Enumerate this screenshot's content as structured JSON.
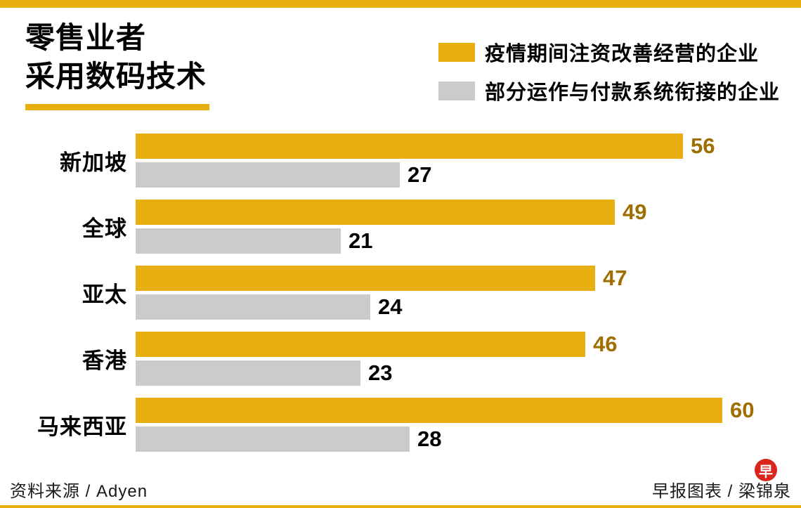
{
  "page": {
    "title_line1": "零售业者",
    "title_line2": "采用数码技术"
  },
  "legend": [
    {
      "label": "疫情期间注资改善经营的企业",
      "color": "#e8af11"
    },
    {
      "label": "部分运作与付款系统衔接的企业",
      "color": "#cbcbcb"
    }
  ],
  "footer": {
    "source": "资料来源 / Adyen",
    "credit": "早报图表 / 梁锦泉",
    "logo_char": "早",
    "logo_color": "#d9251c"
  },
  "colors": {
    "accent_gold": "#e8af11",
    "bar_gray": "#cbcbcb",
    "value_gold_text": "#9e6f00",
    "value_gray_text": "#000000"
  },
  "chart_data": {
    "type": "bar",
    "orientation": "horizontal",
    "title": "零售业者采用数码技术",
    "categories": [
      "新加坡",
      "全球",
      "亚太",
      "香港",
      "马来西亚"
    ],
    "series": [
      {
        "name": "疫情期间注资改善经营的企业",
        "color": "#e8af11",
        "values": [
          56,
          49,
          47,
          46,
          60
        ]
      },
      {
        "name": "部分运作与付款系统衔接的企业",
        "color": "#cbcbcb",
        "values": [
          27,
          21,
          24,
          23,
          28
        ]
      }
    ],
    "xlim": [
      0,
      60
    ],
    "grid": false,
    "legend_position": "top-right",
    "value_labels": "end-of-bar"
  }
}
